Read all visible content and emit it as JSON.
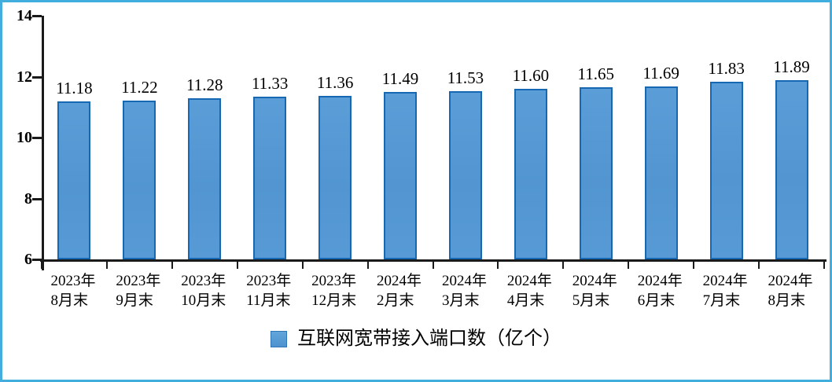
{
  "chart_data": {
    "type": "bar",
    "title": "",
    "series_name": "互联网宽带接入端口数（亿个）",
    "categories": [
      {
        "line1": "2023年",
        "line2": "8月末"
      },
      {
        "line1": "2023年",
        "line2": "9月末"
      },
      {
        "line1": "2023年",
        "line2": "10月末"
      },
      {
        "line1": "2023年",
        "line2": "11月末"
      },
      {
        "line1": "2023年",
        "line2": "12月末"
      },
      {
        "line1": "2024年",
        "line2": "2月末"
      },
      {
        "line1": "2024年",
        "line2": "3月末"
      },
      {
        "line1": "2024年",
        "line2": "4月末"
      },
      {
        "line1": "2024年",
        "line2": "5月末"
      },
      {
        "line1": "2024年",
        "line2": "6月末"
      },
      {
        "line1": "2024年",
        "line2": "7月末"
      },
      {
        "line1": "2024年",
        "line2": "8月末"
      }
    ],
    "values": [
      11.18,
      11.22,
      11.28,
      11.33,
      11.36,
      11.49,
      11.53,
      11.6,
      11.65,
      11.69,
      11.83,
      11.89
    ],
    "value_labels": [
      "11.18",
      "11.22",
      "11.28",
      "11.33",
      "11.36",
      "11.49",
      "11.53",
      "11.60",
      "11.65",
      "11.69",
      "11.83",
      "11.89"
    ],
    "xlabel": "",
    "ylabel": "",
    "ylim": [
      6,
      14
    ],
    "yticks": [
      6,
      8,
      10,
      12,
      14
    ],
    "grid": false,
    "legend_position": "bottom-center",
    "colors": {
      "bar_fill": "#5598d4",
      "bar_border": "#1668b2",
      "frame_border": "#41aede",
      "axis": "#1a1a1a",
      "text": "#000000"
    }
  },
  "legend": {
    "label": "互联网宽带接入端口数（亿个）"
  }
}
